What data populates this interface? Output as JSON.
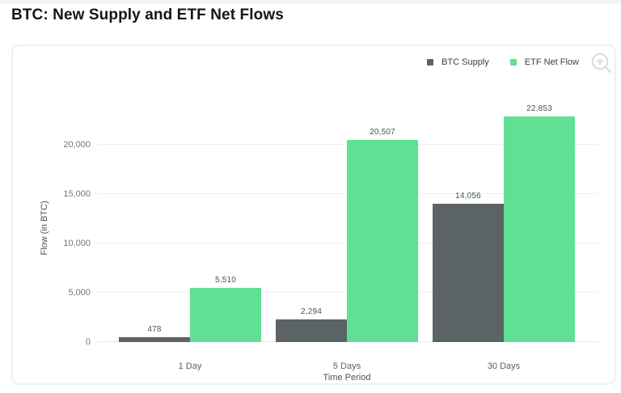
{
  "page": {
    "title": "BTC: New Supply and ETF Net Flows"
  },
  "chart_data": {
    "type": "bar",
    "title": "BTC: New Supply and ETF Net Flows",
    "categories": [
      "1 Day",
      "5 Days",
      "30 Days"
    ],
    "series": [
      {
        "name": "BTC Supply",
        "color": "#5c6364",
        "values": [
          478,
          2294,
          14056
        ],
        "value_labels": [
          "478",
          "2,294",
          "14,056"
        ]
      },
      {
        "name": "ETF Net Flow",
        "color": "#5fe092",
        "values": [
          5510,
          20507,
          22853
        ],
        "value_labels": [
          "5,510",
          "20,507",
          "22,853"
        ]
      }
    ],
    "xlabel": "Time Period",
    "ylabel": "Flow (in BTC)",
    "ylim": [
      0,
      23000
    ],
    "yticks": [
      0,
      5000,
      10000,
      15000,
      20000
    ],
    "ytick_labels": [
      "0",
      "5,000",
      "10,000",
      "15,000",
      "20,000"
    ],
    "grid": true,
    "legend_position": "top-right",
    "grid_color": "#efefef",
    "value_label_color": "#4d5256"
  },
  "icons": {
    "zoom_in": "magnifier-plus-icon"
  }
}
